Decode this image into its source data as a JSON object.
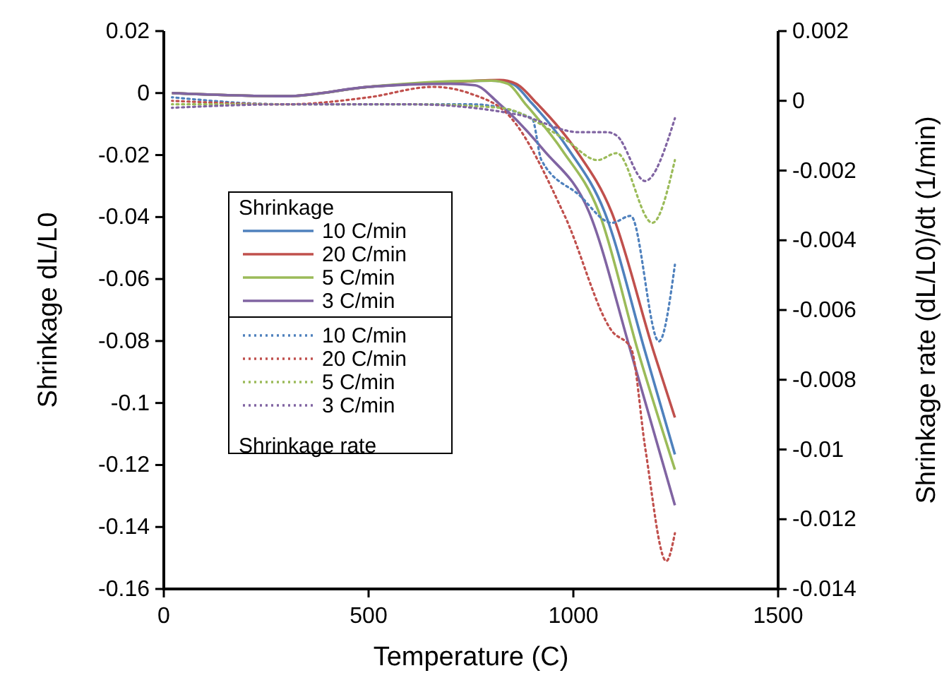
{
  "chart_data": {
    "type": "line",
    "xlabel": "Temperature (C)",
    "ylabel": "Shrinkage dL/L0",
    "y2label": "Shrinkage rate (dL/L0)/dt (1/min)",
    "legend_title": "Shrinkage",
    "annotations": [
      "Shrinkage rate"
    ],
    "xlim": [
      0,
      1500
    ],
    "xticks": [
      0,
      500,
      1000,
      1500
    ],
    "ylim": [
      -0.16,
      0.02
    ],
    "yticks": [
      0.02,
      0,
      -0.02,
      -0.04,
      -0.06,
      -0.08,
      -0.1,
      -0.12,
      -0.14,
      -0.16
    ],
    "y2lim": [
      -0.014,
      0.002
    ],
    "y2ticks": [
      0.002,
      0,
      -0.002,
      -0.004,
      -0.006,
      -0.008,
      -0.01,
      -0.012,
      -0.014
    ],
    "grid": false,
    "legend": "left",
    "marker": "none",
    "series": [
      {
        "name": "10 C/min",
        "color": "#4f81bd",
        "line_style": "solid",
        "x": [
          20,
          300,
          500,
          700,
          800,
          850,
          898,
          990,
          1076,
          1176,
          1248
        ],
        "values": [
          0,
          -0.001,
          0.002,
          0.0035,
          0.004,
          0.003,
          -0.0032,
          -0.0185,
          -0.0383,
          -0.0838,
          -0.1166
        ]
      },
      {
        "name": "20 C/min",
        "color": "#c0504d",
        "line_style": "solid",
        "x": [
          20,
          300,
          500,
          700,
          820,
          860,
          910,
          1007,
          1093,
          1197,
          1248
        ],
        "values": [
          0,
          -0.001,
          0.002,
          0.0035,
          0.0042,
          0.003,
          -0.0032,
          -0.0185,
          -0.0383,
          -0.0838,
          -0.1047
        ]
      },
      {
        "name": "5 C/min",
        "color": "#9bbb59",
        "line_style": "solid",
        "x": [
          20,
          300,
          500,
          700,
          800,
          840,
          881,
          973,
          1062,
          1159,
          1248
        ],
        "values": [
          0,
          -0.001,
          0.002,
          0.0038,
          0.004,
          0.003,
          -0.0032,
          -0.0185,
          -0.0383,
          -0.0838,
          -0.1215
        ]
      },
      {
        "name": "3 C/min",
        "color": "#8064a2",
        "line_style": "solid",
        "x": [
          20,
          300,
          500,
          700,
          760,
          817,
          928,
          1038,
          1141,
          1248
        ],
        "values": [
          0,
          -0.001,
          0.002,
          0.003,
          0.0025,
          -0.0032,
          -0.0185,
          -0.0383,
          -0.0838,
          -0.133
        ]
      },
      {
        "name": "10 C/min",
        "color": "#4f81bd",
        "line_style": "dotted",
        "axis": "y2",
        "x": [
          20,
          300,
          600,
          750,
          899,
          922,
          1014,
          1094,
          1140,
          1209,
          1248
        ],
        "values": [
          0.0001,
          -0.0001,
          -0.0001,
          -0.0001,
          -0.0005,
          -0.0017,
          -0.0027,
          -0.0035,
          -0.0033,
          -0.0069,
          -0.0047
        ]
      },
      {
        "name": "20 C/min",
        "color": "#c0504d",
        "line_style": "dotted",
        "axis": "y2",
        "x": [
          20,
          300,
          500,
          658,
          750,
          841,
          979,
          1094,
          1141,
          1176,
          1227,
          1248
        ],
        "values": [
          0,
          -0.0001,
          0.0001,
          0.0004,
          0.0002,
          -0.0004,
          -0.0033,
          -0.0066,
          -0.0071,
          -0.01,
          -0.0132,
          -0.0124
        ]
      },
      {
        "name": "5 C/min",
        "color": "#9bbb59",
        "line_style": "dotted",
        "axis": "y2",
        "x": [
          20,
          300,
          600,
          821,
          979,
          1059,
          1106,
          1193,
          1248
        ],
        "values": [
          -0.0001,
          -0.0001,
          -0.0001,
          -0.0002,
          -0.0011,
          -0.0017,
          -0.0015,
          -0.0035,
          -0.0017
        ]
      },
      {
        "name": "3 C/min",
        "color": "#8064a2",
        "line_style": "dotted",
        "axis": "y2",
        "x": [
          20,
          300,
          600,
          866,
          1014,
          1082,
          1106,
          1175,
          1248
        ],
        "values": [
          -0.0002,
          -0.0001,
          -0.0001,
          -0.0004,
          -0.0009,
          -0.0009,
          -0.001,
          -0.0023,
          -0.0005
        ]
      }
    ]
  }
}
